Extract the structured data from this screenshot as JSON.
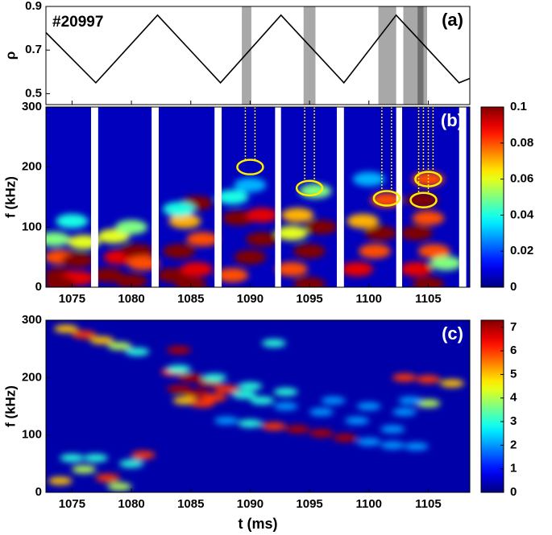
{
  "chart_data": [
    {
      "type": "line",
      "annotation": "#20997",
      "panel_label": "(a)",
      "ylabel": "ρ",
      "color": "#000000",
      "x": [
        1072.8,
        1077,
        1082.2,
        1087.5,
        1092.6,
        1097.9,
        1102.3,
        1107.6,
        1108.5
      ],
      "values": [
        0.78,
        0.55,
        0.86,
        0.55,
        0.86,
        0.55,
        0.86,
        0.55,
        0.57
      ],
      "xlim": [
        1072.8,
        1108.5
      ],
      "ylim": [
        0.45,
        0.9
      ],
      "yticks": [
        0.5,
        0.7,
        0.9
      ],
      "xticks": [
        1075,
        1080,
        1085,
        1090,
        1095,
        1100,
        1105
      ],
      "bands": [
        [
          1089.3,
          1090.1
        ],
        [
          1094.5,
          1095.5
        ],
        [
          1100.8,
          1102.3
        ],
        [
          1102.9,
          1104.9
        ]
      ],
      "band_color": "#a8a8a8",
      "dark_bands": [
        [
          1104.1,
          1104.6
        ]
      ],
      "dark_band_color": "#707070"
    },
    {
      "type": "heatmap",
      "panel_label": "(b)",
      "ylabel": "f (kHz)",
      "xlim": [
        1072.8,
        1108.5
      ],
      "ylim": [
        0,
        300
      ],
      "xticks": [
        1075,
        1080,
        1085,
        1090,
        1095,
        1100,
        1105
      ],
      "yticks": [
        0,
        100,
        200,
        300
      ],
      "clim": [
        0,
        0.1
      ],
      "cticks": [
        0,
        0.02,
        0.04,
        0.06,
        0.08,
        0.1
      ],
      "background": 0.006,
      "x": [
        1074,
        1075.5,
        1074,
        1075.5,
        1073.5,
        1075,
        1076,
        1078,
        1080,
        1079,
        1080.5,
        1078.5,
        1080,
        1081,
        1083.5,
        1085.5,
        1084,
        1086,
        1084.5,
        1085.5,
        1084,
        1088.5,
        1090,
        1091,
        1089,
        1091,
        1090,
        1088.5,
        1093.5,
        1095,
        1096,
        1094,
        1095.5,
        1093.5,
        1099,
        1100.5,
        1101,
        1099.5,
        1101.5,
        1100,
        1104,
        1105.5,
        1104,
        1105,
        1104.5,
        1105,
        1106.5,
        1074,
        1085,
        1095,
        1105
      ],
      "y": [
        20,
        15,
        50,
        45,
        80,
        110,
        75,
        20,
        10,
        50,
        60,
        85,
        100,
        40,
        20,
        30,
        60,
        80,
        110,
        140,
        130,
        20,
        50,
        80,
        115,
        120,
        170,
        150,
        30,
        60,
        100,
        120,
        160,
        90,
        30,
        60,
        90,
        110,
        145,
        180,
        30,
        60,
        90,
        115,
        145,
        180,
        40,
        5,
        5,
        5,
        5
      ],
      "values": [
        0.1,
        0.09,
        0.08,
        0.1,
        0.05,
        0.04,
        0.06,
        0.1,
        0.1,
        0.09,
        0.1,
        0.06,
        0.05,
        0.08,
        0.1,
        0.09,
        0.1,
        0.08,
        0.07,
        0.1,
        0.04,
        0.08,
        0.1,
        0.1,
        0.1,
        0.09,
        0.03,
        0.04,
        0.08,
        0.1,
        0.1,
        0.07,
        0.05,
        0.06,
        0.09,
        0.08,
        0.1,
        0.07,
        0.08,
        0.03,
        0.09,
        0.08,
        0.1,
        0.08,
        0.1,
        0.08,
        0.05,
        0.1,
        0.1,
        0.1,
        0.1
      ],
      "gaps": [
        [
          1076.6,
          1077.2
        ],
        [
          1081.7,
          1082.3
        ],
        [
          1087,
          1087.6
        ],
        [
          1092.1,
          1092.6
        ],
        [
          1097.3,
          1097.9
        ],
        [
          1102.3,
          1102.8
        ],
        [
          1107.6,
          1108.2
        ]
      ],
      "circles": [
        {
          "t": 1090,
          "f": 200
        },
        {
          "t": 1095,
          "f": 165
        },
        {
          "t": 1101.5,
          "f": 148
        },
        {
          "t": 1105,
          "f": 180
        },
        {
          "t": 1104.6,
          "f": 145
        }
      ],
      "circle_color": "#ffee00"
    },
    {
      "type": "heatmap",
      "panel_label": "(c)",
      "ylabel": "f (kHz)",
      "xlabel": "t (ms)",
      "xlim": [
        1072.8,
        1108.5
      ],
      "ylim": [
        0,
        300
      ],
      "xticks": [
        1075,
        1080,
        1085,
        1090,
        1095,
        1100,
        1105
      ],
      "yticks": [
        0,
        100,
        200,
        300
      ],
      "clim": [
        0,
        7.3
      ],
      "cticks": [
        0,
        1,
        2,
        3,
        4,
        5,
        6,
        7
      ],
      "background": 0.3,
      "x": [
        1074,
        1076,
        1078,
        1080,
        1075,
        1081,
        1079,
        1077,
        1074.5,
        1076,
        1077.5,
        1079,
        1080.5,
        1084,
        1083.5,
        1085,
        1086.5,
        1088,
        1084,
        1085.5,
        1087,
        1084.5,
        1086,
        1089.5,
        1091,
        1093,
        1096,
        1099,
        1102,
        1084,
        1087,
        1090,
        1093,
        1097,
        1100,
        1103,
        1088,
        1090,
        1092,
        1094,
        1096,
        1098,
        1100,
        1102,
        1104,
        1092,
        1105,
        1103.5,
        1103,
        1105,
        1107
      ],
      "y": [
        20,
        40,
        25,
        50,
        60,
        65,
        10,
        60,
        285,
        275,
        265,
        255,
        245,
        248,
        210,
        200,
        190,
        180,
        180,
        172,
        165,
        160,
        155,
        170,
        160,
        150,
        140,
        125,
        110,
        215,
        200,
        185,
        175,
        160,
        150,
        140,
        125,
        120,
        115,
        110,
        103,
        95,
        88,
        82,
        80,
        260,
        155,
        160,
        200,
        197,
        190
      ],
      "values": [
        5,
        4,
        6,
        3,
        3,
        6,
        4,
        3,
        5,
        6,
        5,
        4,
        3,
        7,
        6,
        7,
        7,
        6,
        7,
        7,
        6,
        5,
        6,
        3,
        3,
        2,
        2,
        2,
        2,
        3,
        3,
        3,
        3,
        2,
        2,
        2,
        2,
        3,
        6,
        7,
        7,
        7,
        2,
        2,
        2,
        3,
        4,
        2,
        6,
        6,
        5
      ]
    }
  ]
}
